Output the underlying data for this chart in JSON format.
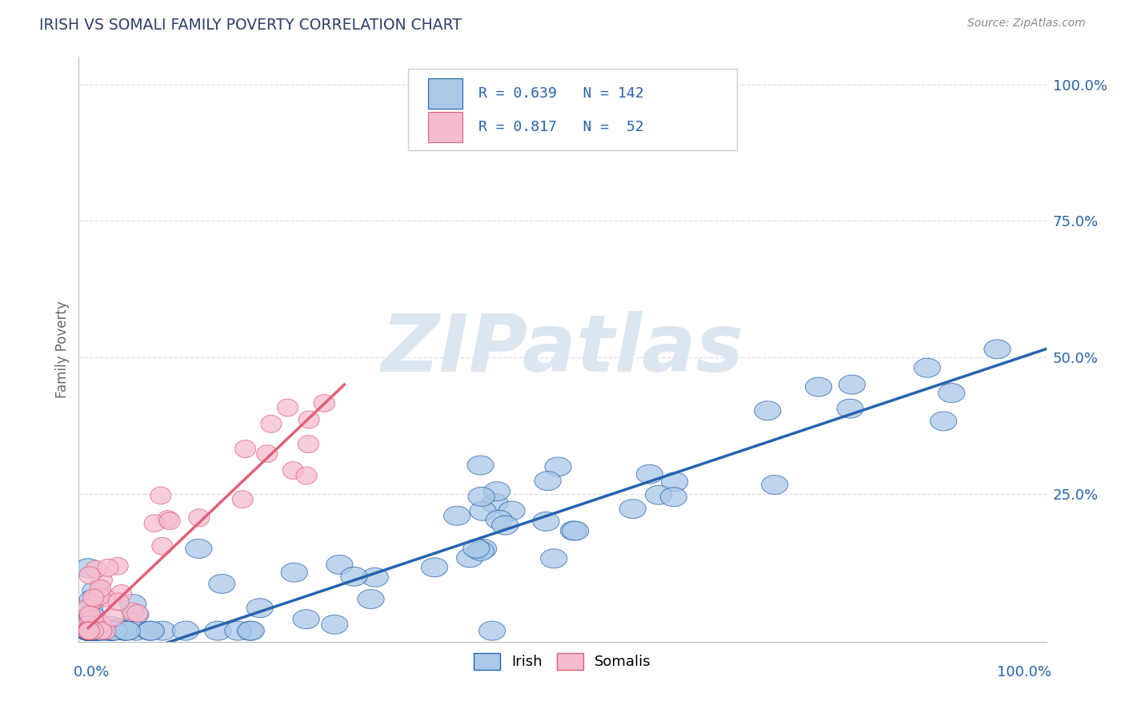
{
  "title": "IRISH VS SOMALI FAMILY POVERTY CORRELATION CHART",
  "source_text": "Source: ZipAtlas.com",
  "ylabel": "Family Poverty",
  "legend_irish_label": "Irish",
  "legend_somali_label": "Somalis",
  "irish_R": "0.639",
  "irish_N": "142",
  "somali_R": "0.817",
  "somali_N": "52",
  "irish_color": "#aac8e8",
  "somali_color": "#f5bcd0",
  "irish_line_color": "#2563ae",
  "somali_line_color": "#e0607a",
  "dashed_line_color": "#d0b8c0",
  "background_color": "#ffffff",
  "grid_color": "#ccd6e8",
  "title_color": "#2c3e6b",
  "source_color": "#888888",
  "watermark_color": "#dce6f0",
  "watermark_text": "ZIPatlas",
  "right_axis_color": "#2563ae",
  "irish_line_intercept": -0.07,
  "irish_line_slope": 0.58,
  "somali_line_intercept": 0.005,
  "somali_line_slope": 1.65,
  "dashed_line_intercept": -0.07,
  "dashed_line_slope": 0.58
}
